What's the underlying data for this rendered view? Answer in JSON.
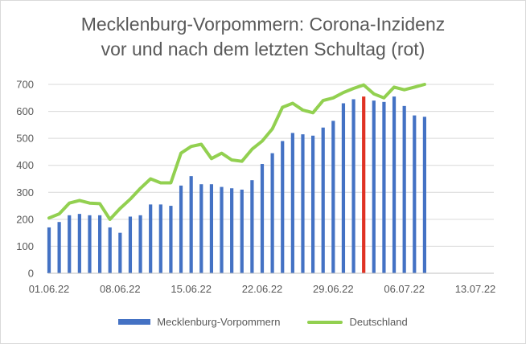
{
  "chart_data": {
    "type": "bar",
    "title_lines": [
      "Mecklenburg-Vorpommern: Corona-Inzidenz",
      "vor und nach dem letzten Schultag (rot)"
    ],
    "x_tick_labels": [
      "01.06.22",
      "08.06.22",
      "15.06.22",
      "22.06.22",
      "29.06.22",
      "06.07.22",
      "13.07.22"
    ],
    "x_tick_days": [
      0,
      7,
      14,
      21,
      28,
      35,
      42
    ],
    "x_range": [
      0,
      42
    ],
    "ylim": [
      0,
      700
    ],
    "yticks": [
      0,
      100,
      200,
      300,
      400,
      500,
      600,
      700
    ],
    "highlight_day": 31,
    "colors": {
      "bar": "#4472c4",
      "highlight": "#e03224",
      "line": "#92d050",
      "grid": "#d9d9d9",
      "axis": "#bfbfbf"
    },
    "series": [
      {
        "name": "Mecklenburg-Vorpommern",
        "type": "bar",
        "days": [
          0,
          1,
          2,
          3,
          4,
          5,
          6,
          7,
          8,
          9,
          10,
          11,
          12,
          13,
          14,
          15,
          16,
          17,
          18,
          19,
          20,
          21,
          22,
          23,
          24,
          25,
          26,
          27,
          28,
          29,
          30,
          31,
          32,
          33,
          34,
          35,
          36,
          37
        ],
        "values": [
          170,
          190,
          215,
          220,
          215,
          215,
          170,
          150,
          210,
          215,
          255,
          255,
          250,
          325,
          360,
          330,
          330,
          320,
          315,
          310,
          345,
          405,
          445,
          490,
          520,
          515,
          510,
          540,
          565,
          630,
          645,
          655,
          640,
          635,
          655,
          620,
          585,
          580
        ]
      },
      {
        "name": "Deutschland",
        "type": "line",
        "days": [
          0,
          1,
          2,
          3,
          4,
          5,
          6,
          7,
          8,
          9,
          10,
          11,
          12,
          13,
          14,
          15,
          16,
          17,
          18,
          19,
          20,
          21,
          22,
          23,
          24,
          25,
          26,
          27,
          28,
          29,
          30,
          31,
          32,
          33,
          34,
          35,
          36,
          37
        ],
        "values": [
          205,
          220,
          260,
          270,
          260,
          258,
          200,
          240,
          275,
          315,
          350,
          335,
          335,
          445,
          470,
          478,
          425,
          445,
          420,
          415,
          460,
          490,
          535,
          615,
          630,
          605,
          595,
          640,
          650,
          670,
          685,
          698,
          665,
          650,
          690,
          680,
          690,
          700
        ]
      }
    ]
  }
}
